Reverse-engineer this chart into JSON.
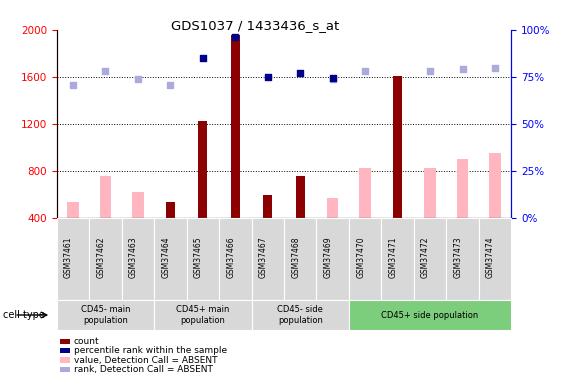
{
  "title": "GDS1037 / 1433436_s_at",
  "samples": [
    "GSM37461",
    "GSM37462",
    "GSM37463",
    "GSM37464",
    "GSM37465",
    "GSM37466",
    "GSM37467",
    "GSM37468",
    "GSM37469",
    "GSM37470",
    "GSM37471",
    "GSM37472",
    "GSM37473",
    "GSM37474"
  ],
  "count_values": [
    null,
    null,
    null,
    530,
    1220,
    1960,
    590,
    750,
    null,
    null,
    1610,
    null,
    null,
    null
  ],
  "value_absent": [
    530,
    750,
    620,
    null,
    null,
    null,
    null,
    null,
    570,
    820,
    null,
    820,
    900,
    950
  ],
  "rank_absent_vals": [
    1530,
    1650,
    1580,
    1530,
    null,
    null,
    null,
    null,
    1580,
    1650,
    null,
    1650,
    1665,
    1680
  ],
  "rank_present_vals": [
    null,
    null,
    null,
    null,
    1760,
    1940,
    1600,
    1630,
    1590,
    null,
    null,
    null,
    null,
    null
  ],
  "count_color": "#8B0000",
  "rank_present_color": "#00008B",
  "value_absent_color": "#FFB6C1",
  "rank_absent_color": "#AAAADD",
  "ylim_left": [
    400,
    2000
  ],
  "ylim_right": [
    0,
    100
  ],
  "yticks_left": [
    400,
    800,
    1200,
    1600,
    2000
  ],
  "yticks_right": [
    0,
    25,
    50,
    75,
    100
  ],
  "hlines": [
    800,
    1200,
    1600
  ],
  "groups": [
    {
      "start": 0,
      "end": 2,
      "label": "CD45- main\npopulation",
      "color": "#d8d8d8"
    },
    {
      "start": 3,
      "end": 5,
      "label": "CD45+ main\npopulation",
      "color": "#d8d8d8"
    },
    {
      "start": 6,
      "end": 8,
      "label": "CD45- side\npopulation",
      "color": "#d8d8d8"
    },
    {
      "start": 9,
      "end": 13,
      "label": "CD45+ side population",
      "color": "#7CCD7C"
    }
  ],
  "legend_items": [
    {
      "color": "#8B0000",
      "label": "count"
    },
    {
      "color": "#00008B",
      "label": "percentile rank within the sample"
    },
    {
      "color": "#FFB6C1",
      "label": "value, Detection Call = ABSENT"
    },
    {
      "color": "#AAAADD",
      "label": "rank, Detection Call = ABSENT"
    }
  ]
}
